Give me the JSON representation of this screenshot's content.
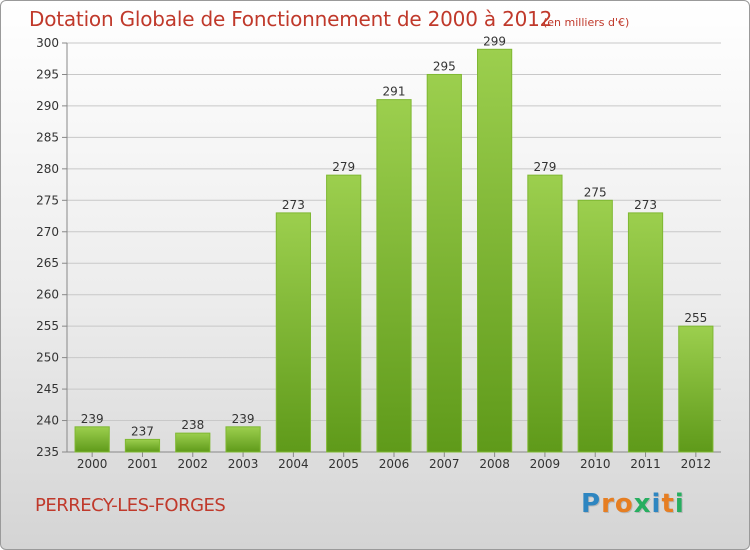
{
  "header": {
    "title": "Dotation Globale de Fonctionnement de 2000 à 2012",
    "unit": "(en milliers d'€)"
  },
  "footer": {
    "commune": "PERRECY-LES-FORGES",
    "logo": [
      "P",
      "r",
      "o",
      "x",
      "i",
      "t",
      "i"
    ]
  },
  "colors": {
    "bar_top": "#9ccf4e",
    "bar_bottom": "#5f9a1a",
    "title": "#c0392b",
    "logo": [
      "#2e86c1",
      "#e67e22",
      "#e67e22",
      "#27ae60",
      "#2e86c1",
      "#e67e22",
      "#27ae60"
    ]
  },
  "chart_data": {
    "type": "bar",
    "title": "Dotation Globale de Fonctionnement de 2000 à 2012",
    "subtitle": "(en milliers d'€)",
    "categories": [
      "2000",
      "2001",
      "2002",
      "2003",
      "2004",
      "2005",
      "2006",
      "2007",
      "2008",
      "2009",
      "2010",
      "2011",
      "2012"
    ],
    "values": [
      239,
      237,
      238,
      239,
      273,
      279,
      291,
      295,
      299,
      279,
      275,
      273,
      255
    ],
    "ylim": [
      235,
      300
    ],
    "yticks": [
      235,
      240,
      245,
      250,
      255,
      260,
      265,
      270,
      275,
      280,
      285,
      290,
      295,
      300
    ],
    "grid": true,
    "xlabel": "",
    "ylabel": ""
  }
}
